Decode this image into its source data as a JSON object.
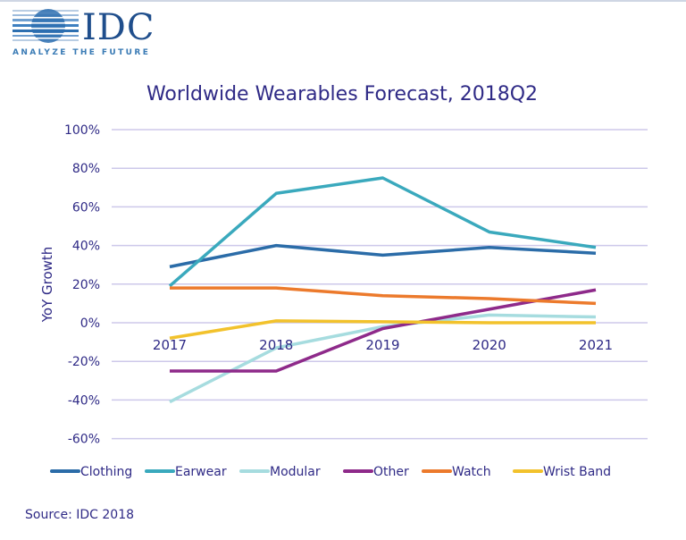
{
  "logo": {
    "brand": "IDC",
    "tagline": "ANALYZE THE FUTURE"
  },
  "source": "Source: IDC 2018",
  "colors": {
    "text": "#2f2a86",
    "grid": "#cdc8ea"
  },
  "chart_data": {
    "type": "line",
    "title": "Worldwide Wearables Forecast, 2018Q2",
    "xlabel": "",
    "ylabel": "YoY Growth",
    "x": [
      "2017",
      "2018",
      "2019",
      "2020",
      "2021"
    ],
    "ylim": [
      -60,
      100
    ],
    "yticks": [
      100,
      80,
      60,
      40,
      20,
      0,
      -20,
      -40,
      -60
    ],
    "ytick_labels": [
      "100%",
      "80%",
      "60%",
      "40%",
      "20%",
      "0%",
      "-20%",
      "-40%",
      "-60%"
    ],
    "grid": true,
    "legend_position": "bottom",
    "series": [
      {
        "name": "Clothing",
        "color": "#2b6ca8",
        "values": [
          29,
          40,
          35,
          39,
          36
        ]
      },
      {
        "name": "Earwear",
        "color": "#3aa9bd",
        "values": [
          19,
          67,
          75,
          47,
          39
        ]
      },
      {
        "name": "Modular",
        "color": "#a6dcdf",
        "values": [
          -41,
          -13,
          -2,
          4,
          3
        ]
      },
      {
        "name": "Other",
        "color": "#8e2a8a",
        "values": [
          -25,
          -25,
          -3,
          7,
          17
        ]
      },
      {
        "name": "Watch",
        "color": "#ec7a2c",
        "values": [
          18,
          18,
          14,
          12.5,
          10
        ]
      },
      {
        "name": "Wrist Band",
        "color": "#f2c22c",
        "values": [
          -8,
          1,
          0.5,
          0,
          0
        ]
      }
    ]
  }
}
